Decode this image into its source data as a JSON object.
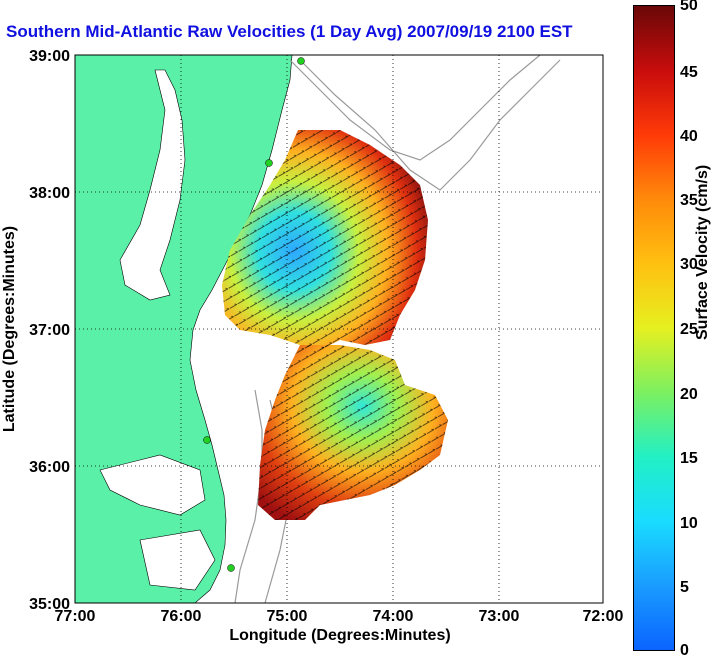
{
  "title": "Southern Mid-Atlantic Raw Velocities (1 Day Avg) 2007/09/19 2100 EST",
  "x_axis": {
    "label": "Longitude (Degrees:Minutes)",
    "ticks": [
      "77:00",
      "76:00",
      "75:00",
      "74:00",
      "73:00",
      "72:00"
    ]
  },
  "y_axis": {
    "label": "Latitude (Degrees:Minutes)",
    "ticks": [
      "35:00",
      "36:00",
      "37:00",
      "38:00",
      "39:00"
    ]
  },
  "colorbar": {
    "label": "Surface Velocity (cm/s)",
    "ticks": [
      "0",
      "5",
      "10",
      "15",
      "20",
      "25",
      "30",
      "35",
      "40",
      "45",
      "50"
    ],
    "min": 0,
    "max": 50
  },
  "colors": {
    "land": "#5af0a8",
    "title": "#1010e0",
    "stations": "#22d022"
  },
  "chart_data": {
    "type": "heatmap",
    "title": "Southern Mid-Atlantic Raw Velocities (1 Day Avg) 2007/09/19 2100 EST",
    "xlabel": "Longitude (Degrees:Minutes)",
    "ylabel": "Latitude (Degrees:Minutes)",
    "xlim": [
      -77,
      -72
    ],
    "ylim": [
      35,
      39
    ],
    "grid": true,
    "colorscale_range": [
      0,
      50
    ],
    "colorscale_label": "Surface Velocity (cm/s)"
  }
}
